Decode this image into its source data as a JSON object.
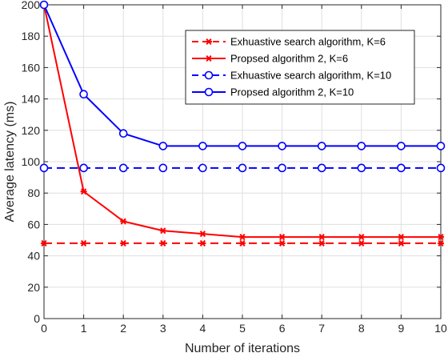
{
  "chart_data": {
    "type": "line",
    "title": "",
    "xlabel": "Number of iterations",
    "ylabel": "Average latency (ms)",
    "xlim": [
      0,
      10
    ],
    "ylim": [
      0,
      200
    ],
    "x_ticks": [
      0,
      1,
      2,
      3,
      4,
      5,
      6,
      7,
      8,
      9,
      10
    ],
    "y_ticks": [
      0,
      20,
      40,
      60,
      80,
      100,
      120,
      140,
      160,
      180,
      200
    ],
    "grid": true,
    "legend_position": "top-right",
    "x": [
      0,
      1,
      2,
      3,
      4,
      5,
      6,
      7,
      8,
      9,
      10
    ],
    "series": [
      {
        "name": "Exhuastive search algorithm, K=6",
        "values": [
          48,
          48,
          48,
          48,
          48,
          48,
          48,
          48,
          48,
          48,
          48
        ],
        "color": "#ff0000",
        "line_style": "dashed",
        "marker": "asterisk"
      },
      {
        "name": "Propsed algorithm 2, K=6",
        "values": [
          200,
          81,
          62,
          56,
          54,
          52,
          52,
          52,
          52,
          52,
          52
        ],
        "color": "#ff0000",
        "line_style": "solid",
        "marker": "asterisk"
      },
      {
        "name": "Exhuastive search algorithm, K=10",
        "values": [
          96,
          96,
          96,
          96,
          96,
          96,
          96,
          96,
          96,
          96,
          96
        ],
        "color": "#0000ff",
        "line_style": "dashed",
        "marker": "circle"
      },
      {
        "name": "Propsed algorithm 2, K=10",
        "values": [
          200,
          143,
          118,
          110,
          110,
          110,
          110,
          110,
          110,
          110,
          110
        ],
        "color": "#0000ff",
        "line_style": "solid",
        "marker": "circle"
      }
    ]
  }
}
